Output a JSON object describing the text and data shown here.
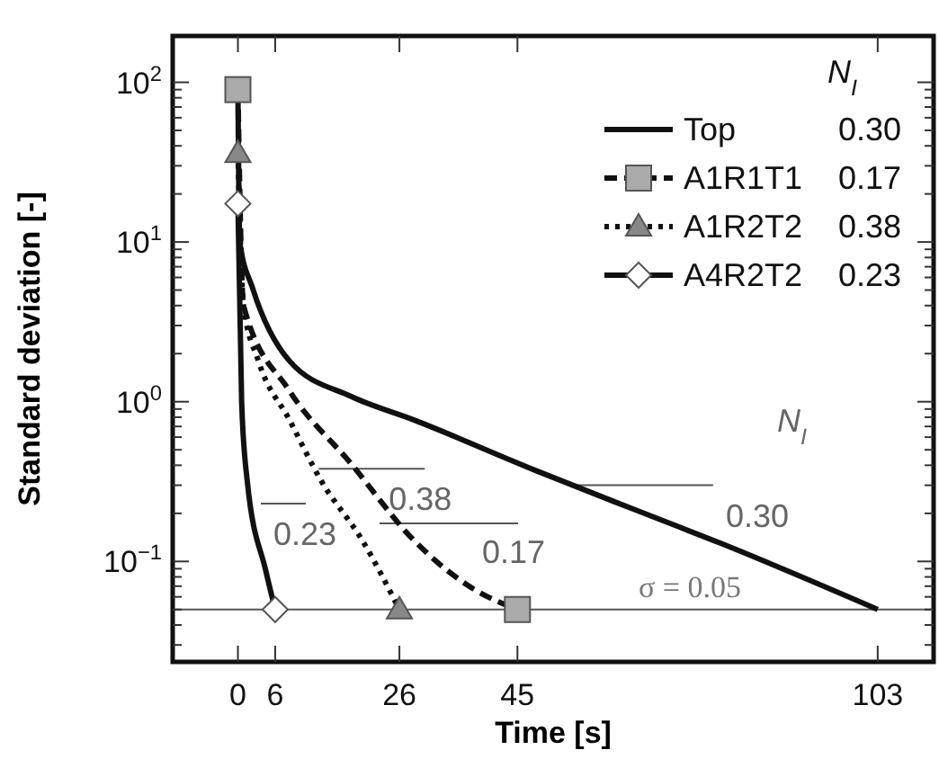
{
  "chart_data": {
    "type": "line",
    "xlabel": "Time [s]",
    "ylabel": "Standard deviation [-]",
    "log": "y",
    "legend": "top right",
    "legend_title": "N$_{I}$",
    "xlim": [
      -10.5,
      112
    ],
    "xticks": [
      0,
      6,
      26,
      45,
      103
    ],
    "ylim": [
      0.0235,
      195
    ],
    "yticks": [
      {
        "value": 0.03,
        "label": null
      },
      {
        "value": 0.04,
        "label": null
      },
      {
        "value": 0.05,
        "label": null
      },
      {
        "value": 0.06,
        "label": null
      },
      {
        "value": 0.07,
        "label": null
      },
      {
        "value": 0.08,
        "label": null
      },
      {
        "value": 0.09,
        "label": null
      },
      {
        "value": 0.1,
        "label": "10$^{−1}$"
      },
      {
        "value": 0.2,
        "label": null
      },
      {
        "value": 0.3,
        "label": null
      },
      {
        "value": 0.4,
        "label": null
      },
      {
        "value": 0.5,
        "label": null
      },
      {
        "value": 0.6,
        "label": null
      },
      {
        "value": 0.7,
        "label": null
      },
      {
        "value": 0.8,
        "label": null
      },
      {
        "value": 0.9,
        "label": null
      },
      {
        "value": 1,
        "label": "10$^{0}$"
      },
      {
        "value": 2,
        "label": null
      },
      {
        "value": 3,
        "label": null
      },
      {
        "value": 4,
        "label": null
      },
      {
        "value": 5,
        "label": null
      },
      {
        "value": 6,
        "label": null
      },
      {
        "value": 7,
        "label": null
      },
      {
        "value": 8,
        "label": null
      },
      {
        "value": 9,
        "label": null
      },
      {
        "value": 10,
        "label": "10$^{1}$"
      },
      {
        "value": 20,
        "label": null
      },
      {
        "value": 30,
        "label": null
      },
      {
        "value": 40,
        "label": null
      },
      {
        "value": 50,
        "label": null
      },
      {
        "value": 60,
        "label": null
      },
      {
        "value": 70,
        "label": null
      },
      {
        "value": 80,
        "label": null
      },
      {
        "value": 90,
        "label": null
      },
      {
        "value": 100,
        "label": "10$^{2}$"
      }
    ],
    "series": [
      {
        "name": "Top 0.30",
        "color": "#111111",
        "line_style": "solid",
        "x": [
          0,
          0.3,
          2.4,
          8.3,
          18.2,
          28.3,
          48,
          64,
          77.7,
          103
        ],
        "values": [
          90,
          10,
          5.1,
          1.8,
          1.08,
          0.77,
          0.37,
          0.21,
          0.13,
          0.05
        ]
      },
      {
        "name": "A1R1T1 0.17",
        "color": "#111111",
        "line_style": "dashed",
        "x": [
          0,
          0.9,
          8.3,
          18.2,
          28.3,
          38,
          45
        ],
        "values": [
          90,
          4,
          1.17,
          0.41,
          0.136,
          0.067,
          0.05
        ]
      },
      {
        "type": "scatter",
        "color": "#aaaaaa",
        "marker": "square",
        "x": [
          0,
          45
        ],
        "values": [
          90,
          0.05
        ]
      },
      {
        "name": "A1R2T2 0.38",
        "color": "#111111",
        "line_style": "dotted",
        "x": [
          0,
          0.9,
          3.3,
          8.3,
          13.4,
          20,
          26
        ],
        "values": [
          36,
          4,
          1.8,
          0.77,
          0.32,
          0.136,
          0.05
        ]
      },
      {
        "type": "scatter",
        "color": "#888888",
        "marker": "triangle",
        "x": [
          0,
          26
        ],
        "values": [
          36,
          0.05
        ]
      },
      {
        "name": "A4R2T2 0.23",
        "color": "#111111",
        "line_style": "solid",
        "x": [
          0,
          0.6,
          1.5,
          4.5,
          6
        ],
        "values": [
          17.4,
          1,
          0.32,
          0.087,
          0.05
        ]
      },
      {
        "type": "scatter",
        "color": "#ffffff",
        "marker": "diamond",
        "x": [
          0,
          6
        ],
        "values": [
          17.4,
          0.05
        ]
      }
    ],
    "ref_lines": [
      {
        "axis": "y",
        "value": 0.05,
        "label": "σ = 0.05",
        "color": "#555555"
      }
    ],
    "annotations": [
      "0.23",
      {
        "text": "0.38",
        "x": 13,
        "y": 0.38
      },
      "0.17",
      {
        "text": "0.30",
        "x": 54.5,
        "y": 0.3
      },
      "N$_{I}$"
    ]
  }
}
